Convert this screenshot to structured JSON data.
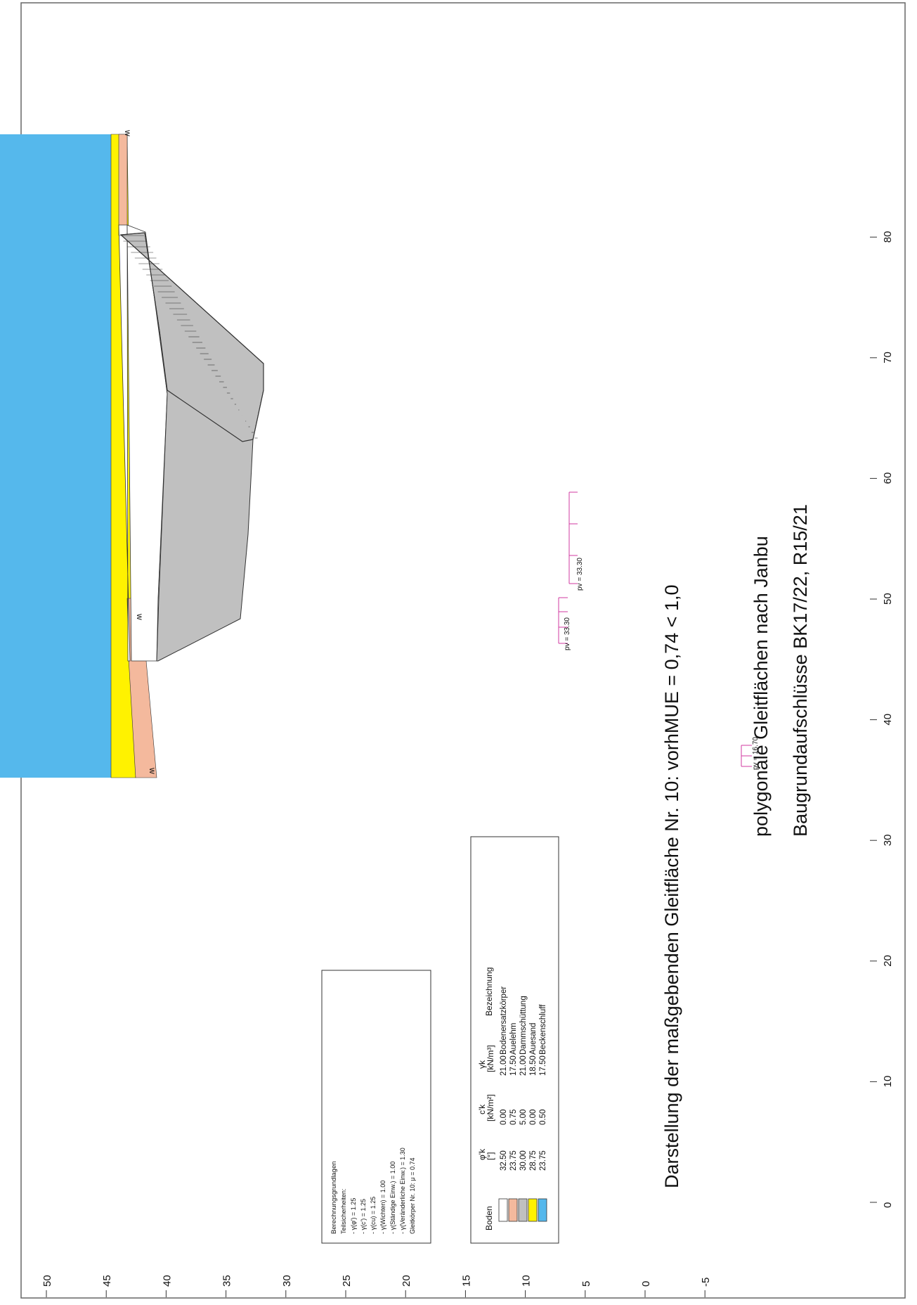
{
  "title": {
    "line1": "Baugrundaufschlüsse BK17/22, R15/21",
    "line2": "polygonale Gleitflächen nach Janbu",
    "line3": "Darstellung der maßgebenden Gleitfläche Nr. 10: vorhMUE = 0,74 < 1,0"
  },
  "axes": {
    "x_ticks": [
      "0",
      "10",
      "20",
      "30",
      "40",
      "50",
      "60",
      "70",
      "80"
    ],
    "y_ticks": [
      "50",
      "45",
      "40",
      "35",
      "30",
      "25",
      "20",
      "15",
      "10",
      "5",
      "0",
      "-5"
    ]
  },
  "loads": [
    {
      "text": "pv = 16.70"
    },
    {
      "text": "pv = 33.30"
    },
    {
      "text": "pv = 33.30"
    }
  ],
  "water_marker": "w",
  "calc_box": {
    "lines": [
      "Berechnungsgrundlagen",
      "Teilsicherheiten:",
      "- γ(φ') = 1.25",
      "- γ(c') = 1.25",
      "- γ(cu) = 1.25",
      "- γ(Wichten) = 1.00",
      "- γ(Ständige Einw.) = 1.00",
      "- γ(Veränderliche Einw.) = 1.30",
      "Gleitkörper Nr. 10: μ = 0.74"
    ]
  },
  "legend": {
    "headers": [
      "Boden",
      "φ'k",
      "[°]",
      "c'k",
      "[kN/m²]",
      "γk",
      "[kN/m³]",
      "Bezeichnung"
    ],
    "rows": [
      {
        "color": "#ffffff",
        "phi": "32.50",
        "c": "0.00",
        "gamma": "21.00",
        "name": "Bodenersatzkörper"
      },
      {
        "color": "#f4b99d",
        "phi": "23.75",
        "c": "0.75",
        "gamma": "17.50",
        "name": "Auelehm"
      },
      {
        "color": "#c0c0c0",
        "phi": "30.00",
        "c": "5.00",
        "gamma": "21.00",
        "name": "Dammschüttung"
      },
      {
        "color": "#fff200",
        "phi": "28.75",
        "c": "0.00",
        "gamma": "18.50",
        "name": "Auesand"
      },
      {
        "color": "#55b8ec",
        "phi": "23.75",
        "c": "0.50",
        "gamma": "17.50",
        "name": "Beckenschluff"
      }
    ]
  },
  "soil_colors": {
    "fill": "#ffffff",
    "clay": "#f4b99d",
    "dam": "#c0c0c0",
    "sand": "#fff200",
    "silt": "#55b8ec",
    "load": "#d03aa0",
    "water": "#3b5bd6"
  }
}
